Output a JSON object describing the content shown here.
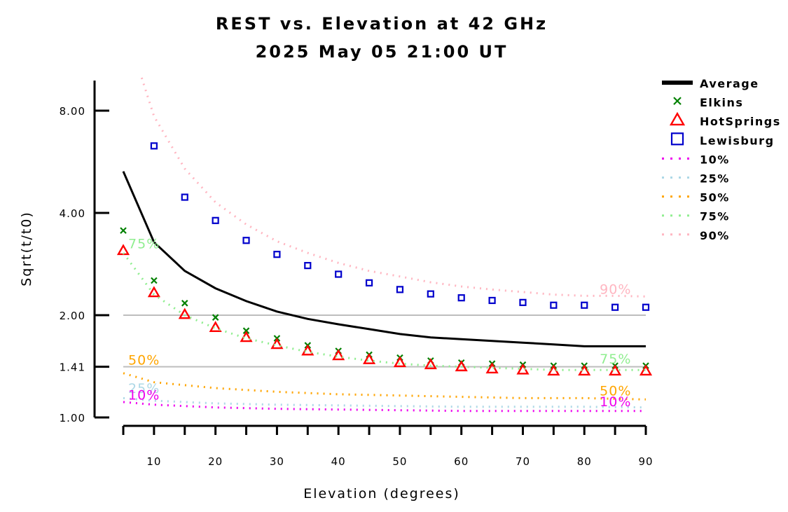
{
  "chart_data": {
    "type": "line",
    "title": "REST vs. Elevation at 42 GHz",
    "subtitle": "2025 May 05 21:00 UT",
    "xlabel": "Elevation (degrees)",
    "ylabel": "Sqrt(t/t0)",
    "xlim": [
      5,
      90
    ],
    "ylim": [
      1.0,
      10.0
    ],
    "yscale": "log",
    "x_ticks": [
      10,
      20,
      30,
      40,
      50,
      60,
      70,
      80,
      90
    ],
    "y_ticks": [
      1.0,
      1.41,
      2.0,
      4.0,
      8.0
    ],
    "y_tick_labels": [
      "1.00",
      "1.41",
      "2.00",
      "4.00",
      "8.00"
    ],
    "reference_lines": [
      1.41,
      2.0
    ],
    "legend_position": "right",
    "series": [
      {
        "name": "Average",
        "style": "line",
        "color": "#000000",
        "x": [
          5,
          10,
          15,
          20,
          25,
          30,
          35,
          40,
          45,
          50,
          55,
          60,
          65,
          70,
          75,
          80,
          85,
          90
        ],
        "y": [
          5.3,
          3.28,
          2.7,
          2.4,
          2.2,
          2.05,
          1.95,
          1.88,
          1.82,
          1.76,
          1.72,
          1.7,
          1.68,
          1.66,
          1.64,
          1.62,
          1.62,
          1.62
        ]
      },
      {
        "name": "Elkins",
        "style": "marker-x",
        "color": "#008000",
        "x": [
          5,
          10,
          15,
          20,
          25,
          30,
          35,
          40,
          45,
          50,
          55,
          60,
          65,
          70,
          75,
          80,
          85,
          90
        ],
        "y": [
          3.55,
          2.53,
          2.17,
          1.97,
          1.8,
          1.71,
          1.63,
          1.57,
          1.53,
          1.5,
          1.47,
          1.45,
          1.44,
          1.43,
          1.42,
          1.42,
          1.42,
          1.42
        ]
      },
      {
        "name": "HotSprings",
        "style": "marker-triangle",
        "color": "#ff0000",
        "x": [
          5,
          10,
          15,
          20,
          25,
          30,
          35,
          40,
          45,
          50,
          55,
          60,
          65,
          70,
          75,
          80,
          85,
          90
        ],
        "y": [
          3.1,
          2.33,
          2.01,
          1.84,
          1.72,
          1.64,
          1.57,
          1.52,
          1.48,
          1.45,
          1.43,
          1.41,
          1.39,
          1.38,
          1.37,
          1.37,
          1.37,
          1.37
        ]
      },
      {
        "name": "Lewisburg",
        "style": "marker-square",
        "color": "#0000cc",
        "x": [
          10,
          15,
          20,
          25,
          30,
          35,
          40,
          45,
          50,
          55,
          60,
          65,
          70,
          75,
          80,
          85,
          90
        ],
        "y": [
          6.3,
          4.45,
          3.8,
          3.32,
          3.02,
          2.8,
          2.64,
          2.49,
          2.38,
          2.31,
          2.25,
          2.21,
          2.18,
          2.14,
          2.14,
          2.11,
          2.11
        ]
      },
      {
        "name": "10%",
        "style": "dotted",
        "color": "#ee00ee",
        "x": [
          5,
          10,
          20,
          30,
          40,
          50,
          60,
          70,
          80,
          90
        ],
        "y": [
          1.11,
          1.09,
          1.07,
          1.06,
          1.055,
          1.05,
          1.045,
          1.045,
          1.045,
          1.045
        ]
      },
      {
        "name": "25%",
        "style": "dotted",
        "color": "#add8e6",
        "x": [
          5,
          10,
          20,
          30,
          40,
          50,
          60,
          70,
          80,
          90
        ],
        "y": [
          1.14,
          1.12,
          1.1,
          1.09,
          1.085,
          1.08,
          1.075,
          1.075,
          1.075,
          1.07
        ]
      },
      {
        "name": "50%",
        "style": "dotted",
        "color": "#ffa500",
        "x": [
          5,
          10,
          20,
          30,
          40,
          50,
          60,
          70,
          80,
          90
        ],
        "y": [
          1.35,
          1.27,
          1.22,
          1.19,
          1.17,
          1.16,
          1.15,
          1.14,
          1.14,
          1.13
        ]
      },
      {
        "name": "75%",
        "style": "dotted",
        "color": "#90ee90",
        "x": [
          5,
          10,
          15,
          20,
          25,
          30,
          35,
          40,
          45,
          50,
          55,
          60,
          65,
          70,
          75,
          80,
          85,
          90
        ],
        "y": [
          3.05,
          2.3,
          2.0,
          1.83,
          1.71,
          1.63,
          1.56,
          1.51,
          1.47,
          1.44,
          1.42,
          1.41,
          1.4,
          1.39,
          1.38,
          1.38,
          1.38,
          1.38
        ]
      },
      {
        "name": "90%",
        "style": "dotted",
        "color": "#ffb6c1",
        "x": [
          8,
          10,
          15,
          20,
          25,
          30,
          35,
          40,
          45,
          50,
          55,
          60,
          65,
          70,
          75,
          80,
          85,
          90
        ],
        "y": [
          10.0,
          7.7,
          5.4,
          4.3,
          3.7,
          3.3,
          3.05,
          2.85,
          2.7,
          2.6,
          2.5,
          2.43,
          2.38,
          2.34,
          2.3,
          2.28,
          2.28,
          2.27
        ]
      }
    ],
    "annotations": [
      {
        "text": "75%",
        "x": 5.8,
        "y": 3.15,
        "color": "#90ee90"
      },
      {
        "text": "50%",
        "x": 5.8,
        "y": 1.43,
        "color": "#ffa500"
      },
      {
        "text": "25%",
        "x": 5.8,
        "y": 1.18,
        "color": "#add8e6"
      },
      {
        "text": "10%",
        "x": 5.8,
        "y": 1.13,
        "color": "#ee00ee"
      },
      {
        "text": "90%",
        "x": 82.5,
        "y": 2.31,
        "color": "#ffb6c1"
      },
      {
        "text": "75%",
        "x": 82.5,
        "y": 1.44,
        "color": "#90ee90"
      },
      {
        "text": "50%",
        "x": 82.5,
        "y": 1.16,
        "color": "#ffa500"
      },
      {
        "text": "10%",
        "x": 82.5,
        "y": 1.08,
        "color": "#ee00ee"
      }
    ]
  }
}
